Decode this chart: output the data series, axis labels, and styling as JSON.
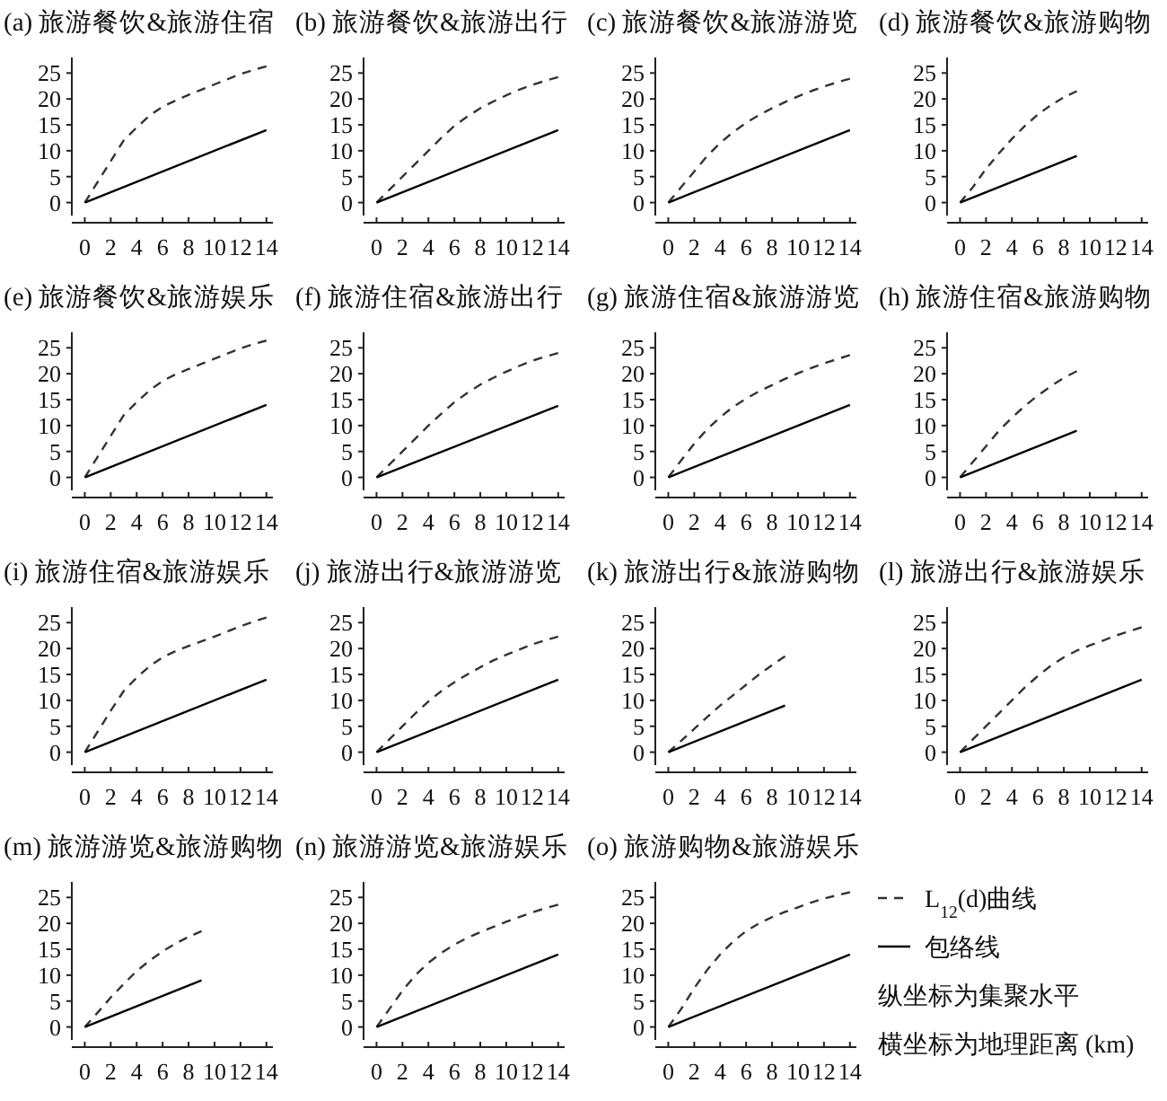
{
  "chart_data": [
    {
      "type": "line",
      "title": "(a) 旅游餐饮&旅游住宿",
      "xlim": [
        -1,
        14.5
      ],
      "ylim": [
        -2.5,
        28
      ],
      "xticks": [
        0,
        2,
        4,
        6,
        8,
        10,
        12,
        14
      ],
      "yticks": [
        0,
        5,
        10,
        15,
        20,
        25
      ],
      "series": [
        {
          "color": "#333333",
          "line_style": "dashed",
          "x": [
            0,
            1,
            2,
            3,
            4,
            5,
            6,
            7,
            8,
            9,
            10,
            11,
            12,
            13,
            14
          ],
          "values": [
            0,
            4,
            8,
            12,
            14.5,
            16.8,
            18.5,
            19.7,
            20.8,
            21.8,
            22.8,
            23.8,
            24.8,
            25.6,
            26.3
          ]
        },
        {
          "color": "#000000",
          "line_style": "solid",
          "x": [
            0,
            14
          ],
          "values": [
            0,
            14
          ]
        }
      ]
    },
    {
      "type": "line",
      "title": "(b) 旅游餐饮&旅游出行",
      "xlim": [
        -1,
        14.5
      ],
      "ylim": [
        -2.5,
        28
      ],
      "xticks": [
        0,
        2,
        4,
        6,
        8,
        10,
        12,
        14
      ],
      "yticks": [
        0,
        5,
        10,
        15,
        20,
        25
      ],
      "series": [
        {
          "color": "#333333",
          "line_style": "dashed",
          "x": [
            0,
            1,
            2,
            3,
            4,
            5,
            6,
            7,
            8,
            9,
            10,
            11,
            12,
            13,
            14
          ],
          "values": [
            0,
            2.5,
            5,
            7.5,
            10,
            12.5,
            14.8,
            16.6,
            18.2,
            19.5,
            20.7,
            21.8,
            22.7,
            23.5,
            24.2
          ]
        },
        {
          "color": "#000000",
          "line_style": "solid",
          "x": [
            0,
            14
          ],
          "values": [
            0,
            14
          ]
        }
      ]
    },
    {
      "type": "line",
      "title": "(c) 旅游餐饮&旅游游览",
      "xlim": [
        -1,
        14.5
      ],
      "ylim": [
        -2.5,
        28
      ],
      "xticks": [
        0,
        2,
        4,
        6,
        8,
        10,
        12,
        14
      ],
      "yticks": [
        0,
        5,
        10,
        15,
        20,
        25
      ],
      "series": [
        {
          "color": "#333333",
          "line_style": "dashed",
          "x": [
            0,
            1,
            2,
            3,
            4,
            5,
            6,
            7,
            8,
            9,
            10,
            11,
            12,
            13,
            14
          ],
          "values": [
            0,
            3,
            6,
            9,
            11.5,
            13.6,
            15.4,
            16.9,
            18.2,
            19.4,
            20.5,
            21.5,
            22.4,
            23.2,
            23.9
          ]
        },
        {
          "color": "#000000",
          "line_style": "solid",
          "x": [
            0,
            14
          ],
          "values": [
            0,
            14
          ]
        }
      ]
    },
    {
      "type": "line",
      "title": "(d) 旅游餐饮&旅游购物",
      "xlim": [
        -1,
        14.5
      ],
      "ylim": [
        -2.5,
        28
      ],
      "xticks": [
        0,
        2,
        4,
        6,
        8,
        10,
        12,
        14
      ],
      "yticks": [
        0,
        5,
        10,
        15,
        20,
        25
      ],
      "series": [
        {
          "color": "#333333",
          "line_style": "dashed",
          "x": [
            0,
            1,
            2,
            3,
            4,
            5,
            6,
            7,
            8,
            9
          ],
          "values": [
            0,
            3,
            6.5,
            9.5,
            12.3,
            14.8,
            17,
            18.8,
            20.3,
            21.5
          ]
        },
        {
          "color": "#000000",
          "line_style": "solid",
          "x": [
            0,
            9
          ],
          "values": [
            0,
            9
          ]
        }
      ]
    },
    {
      "type": "line",
      "title": "(e) 旅游餐饮&旅游娱乐",
      "xlim": [
        -1,
        14.5
      ],
      "ylim": [
        -2.5,
        28
      ],
      "xticks": [
        0,
        2,
        4,
        6,
        8,
        10,
        12,
        14
      ],
      "yticks": [
        0,
        5,
        10,
        15,
        20,
        25
      ],
      "series": [
        {
          "color": "#333333",
          "line_style": "dashed",
          "x": [
            0,
            1,
            2,
            3,
            4,
            5,
            6,
            7,
            8,
            9,
            10,
            11,
            12,
            13,
            14
          ],
          "values": [
            0,
            4,
            8,
            12,
            14.5,
            16.8,
            18.6,
            19.9,
            20.9,
            21.9,
            22.9,
            23.9,
            24.9,
            25.7,
            26.4
          ]
        },
        {
          "color": "#000000",
          "line_style": "solid",
          "x": [
            0,
            14
          ],
          "values": [
            0,
            14
          ]
        }
      ]
    },
    {
      "type": "line",
      "title": "(f) 旅游住宿&旅游出行",
      "xlim": [
        -1,
        14.5
      ],
      "ylim": [
        -2.5,
        28
      ],
      "xticks": [
        0,
        2,
        4,
        6,
        8,
        10,
        12,
        14
      ],
      "yticks": [
        0,
        5,
        10,
        15,
        20,
        25
      ],
      "series": [
        {
          "color": "#333333",
          "line_style": "dashed",
          "x": [
            0,
            1,
            2,
            3,
            4,
            5,
            6,
            7,
            8,
            9,
            10,
            11,
            12,
            13,
            14
          ],
          "values": [
            0,
            2.5,
            5,
            7.5,
            10,
            12.3,
            14.5,
            16.3,
            17.9,
            19.2,
            20.4,
            21.5,
            22.5,
            23.3,
            24
          ]
        },
        {
          "color": "#000000",
          "line_style": "solid",
          "x": [
            0,
            14
          ],
          "values": [
            0,
            13.8
          ]
        }
      ]
    },
    {
      "type": "line",
      "title": "(g) 旅游住宿&旅游游览",
      "xlim": [
        -1,
        14.5
      ],
      "ylim": [
        -2.5,
        28
      ],
      "xticks": [
        0,
        2,
        4,
        6,
        8,
        10,
        12,
        14
      ],
      "yticks": [
        0,
        5,
        10,
        15,
        20,
        25
      ],
      "series": [
        {
          "color": "#333333",
          "line_style": "dashed",
          "x": [
            0,
            1,
            2,
            3,
            4,
            5,
            6,
            7,
            8,
            9,
            10,
            11,
            12,
            13,
            14
          ],
          "values": [
            0,
            3.3,
            6.5,
            9.3,
            11.6,
            13.6,
            15.2,
            16.6,
            17.8,
            19,
            20.1,
            21.1,
            22,
            22.8,
            23.6
          ]
        },
        {
          "color": "#000000",
          "line_style": "solid",
          "x": [
            0,
            14
          ],
          "values": [
            0,
            14
          ]
        }
      ]
    },
    {
      "type": "line",
      "title": "(h) 旅游住宿&旅游购物",
      "xlim": [
        -1,
        14.5
      ],
      "ylim": [
        -2.5,
        28
      ],
      "xticks": [
        0,
        2,
        4,
        6,
        8,
        10,
        12,
        14
      ],
      "yticks": [
        0,
        5,
        10,
        15,
        20,
        25
      ],
      "series": [
        {
          "color": "#333333",
          "line_style": "dashed",
          "x": [
            0,
            1,
            2,
            3,
            4,
            5,
            6,
            7,
            8,
            9
          ],
          "values": [
            0,
            3,
            6,
            9,
            11.5,
            13.8,
            15.8,
            17.6,
            19.2,
            20.5
          ]
        },
        {
          "color": "#000000",
          "line_style": "solid",
          "x": [
            0,
            9
          ],
          "values": [
            0,
            9
          ]
        }
      ]
    },
    {
      "type": "line",
      "title": "(i) 旅游住宿&旅游娱乐",
      "xlim": [
        -1,
        14.5
      ],
      "ylim": [
        -2.5,
        28
      ],
      "xticks": [
        0,
        2,
        4,
        6,
        8,
        10,
        12,
        14
      ],
      "yticks": [
        0,
        5,
        10,
        15,
        20,
        25
      ],
      "series": [
        {
          "color": "#333333",
          "line_style": "dashed",
          "x": [
            0,
            1,
            2,
            3,
            4,
            5,
            6,
            7,
            8,
            9,
            10,
            11,
            12,
            13,
            14
          ],
          "values": [
            0,
            4,
            8,
            11.8,
            14.4,
            16.6,
            18.3,
            19.5,
            20.5,
            21.4,
            22.3,
            23.3,
            24.3,
            25.2,
            26
          ]
        },
        {
          "color": "#000000",
          "line_style": "solid",
          "x": [
            0,
            14
          ],
          "values": [
            0,
            14
          ]
        }
      ]
    },
    {
      "type": "line",
      "title": "(j) 旅游出行&旅游游览",
      "xlim": [
        -1,
        14.5
      ],
      "ylim": [
        -2.5,
        28
      ],
      "xticks": [
        0,
        2,
        4,
        6,
        8,
        10,
        12,
        14
      ],
      "yticks": [
        0,
        5,
        10,
        15,
        20,
        25
      ],
      "series": [
        {
          "color": "#333333",
          "line_style": "dashed",
          "x": [
            0,
            1,
            2,
            3,
            4,
            5,
            6,
            7,
            8,
            9,
            10,
            11,
            12,
            13,
            14
          ],
          "values": [
            0,
            2.5,
            5,
            7.5,
            9.8,
            11.8,
            13.5,
            15,
            16.4,
            17.7,
            18.8,
            19.8,
            20.8,
            21.6,
            22.3
          ]
        },
        {
          "color": "#000000",
          "line_style": "solid",
          "x": [
            0,
            14
          ],
          "values": [
            0,
            14
          ]
        }
      ]
    },
    {
      "type": "line",
      "title": "(k) 旅游出行&旅游购物",
      "xlim": [
        -1,
        14.5
      ],
      "ylim": [
        -2.5,
        28
      ],
      "xticks": [
        0,
        2,
        4,
        6,
        8,
        10,
        12,
        14
      ],
      "yticks": [
        0,
        5,
        10,
        15,
        20,
        25
      ],
      "series": [
        {
          "color": "#333333",
          "line_style": "dashed",
          "x": [
            0,
            1,
            2,
            3,
            4,
            5,
            6,
            7,
            8,
            9
          ],
          "values": [
            0,
            2.2,
            4.5,
            6.8,
            9,
            11,
            13,
            15,
            16.8,
            18.5
          ]
        },
        {
          "color": "#000000",
          "line_style": "solid",
          "x": [
            0,
            9
          ],
          "values": [
            0,
            9
          ]
        }
      ]
    },
    {
      "type": "line",
      "title": "(l) 旅游出行&旅游娱乐",
      "xlim": [
        -1,
        14.5
      ],
      "ylim": [
        -2.5,
        28
      ],
      "xticks": [
        0,
        2,
        4,
        6,
        8,
        10,
        12,
        14
      ],
      "yticks": [
        0,
        5,
        10,
        15,
        20,
        25
      ],
      "series": [
        {
          "color": "#333333",
          "line_style": "dashed",
          "x": [
            0,
            1,
            2,
            3,
            4,
            5,
            6,
            7,
            8,
            9,
            10,
            11,
            12,
            13,
            14
          ],
          "values": [
            0,
            2.5,
            5,
            7.5,
            10,
            12.5,
            14.7,
            16.7,
            18.3,
            19.6,
            20.6,
            21.5,
            22.5,
            23.3,
            24.1
          ]
        },
        {
          "color": "#000000",
          "line_style": "solid",
          "x": [
            0,
            14
          ],
          "values": [
            0,
            14
          ]
        }
      ]
    },
    {
      "type": "line",
      "title": "(m) 旅游游览&旅游购物",
      "xlim": [
        -1,
        14.5
      ],
      "ylim": [
        -2.5,
        28
      ],
      "xticks": [
        0,
        2,
        4,
        6,
        8,
        10,
        12,
        14
      ],
      "yticks": [
        0,
        5,
        10,
        15,
        20,
        25
      ],
      "series": [
        {
          "color": "#333333",
          "line_style": "dashed",
          "x": [
            0,
            1,
            2,
            3,
            4,
            5,
            6,
            7,
            8,
            9
          ],
          "values": [
            0,
            2.8,
            5.7,
            8.3,
            10.8,
            12.8,
            14.6,
            16.1,
            17.4,
            18.5
          ]
        },
        {
          "color": "#000000",
          "line_style": "solid",
          "x": [
            0,
            9
          ],
          "values": [
            0,
            9
          ]
        }
      ]
    },
    {
      "type": "line",
      "title": "(n) 旅游游览&旅游娱乐",
      "xlim": [
        -1,
        14.5
      ],
      "ylim": [
        -2.5,
        28
      ],
      "xticks": [
        0,
        2,
        4,
        6,
        8,
        10,
        12,
        14
      ],
      "yticks": [
        0,
        5,
        10,
        15,
        20,
        25
      ],
      "series": [
        {
          "color": "#333333",
          "line_style": "dashed",
          "x": [
            0,
            1,
            2,
            3,
            4,
            5,
            6,
            7,
            8,
            9,
            10,
            11,
            12,
            13,
            14
          ],
          "values": [
            0,
            3.5,
            7,
            10,
            12.4,
            14.3,
            15.9,
            17.2,
            18.3,
            19.3,
            20.3,
            21.2,
            22.1,
            22.9,
            23.6
          ]
        },
        {
          "color": "#000000",
          "line_style": "solid",
          "x": [
            0,
            14
          ],
          "values": [
            0,
            14
          ]
        }
      ]
    },
    {
      "type": "line",
      "title": "(o) 旅游购物&旅游娱乐",
      "xlim": [
        -1,
        14.5
      ],
      "ylim": [
        -2.5,
        28
      ],
      "xticks": [
        0,
        2,
        4,
        6,
        8,
        10,
        12,
        14
      ],
      "yticks": [
        0,
        5,
        10,
        15,
        20,
        25
      ],
      "legend": "right",
      "annotations": [
        "纵坐标为集聚水平",
        "横坐标为地理距离 (km)"
      ],
      "series": [
        {
          "name": "L$_{12}$(d)曲线",
          "color": "#333333",
          "line_style": "dashed",
          "x": [
            0,
            1,
            2,
            3,
            4,
            5,
            6,
            7,
            8,
            9,
            10,
            11,
            12,
            13,
            14
          ],
          "values": [
            0,
            3.5,
            7.5,
            11,
            14,
            16.5,
            18.5,
            20,
            21.2,
            22.2,
            23.1,
            24,
            24.8,
            25.4,
            26
          ]
        },
        {
          "name": "包络线",
          "color": "#000000",
          "line_style": "solid",
          "x": [
            0,
            14
          ],
          "values": [
            0,
            14
          ]
        }
      ]
    }
  ]
}
